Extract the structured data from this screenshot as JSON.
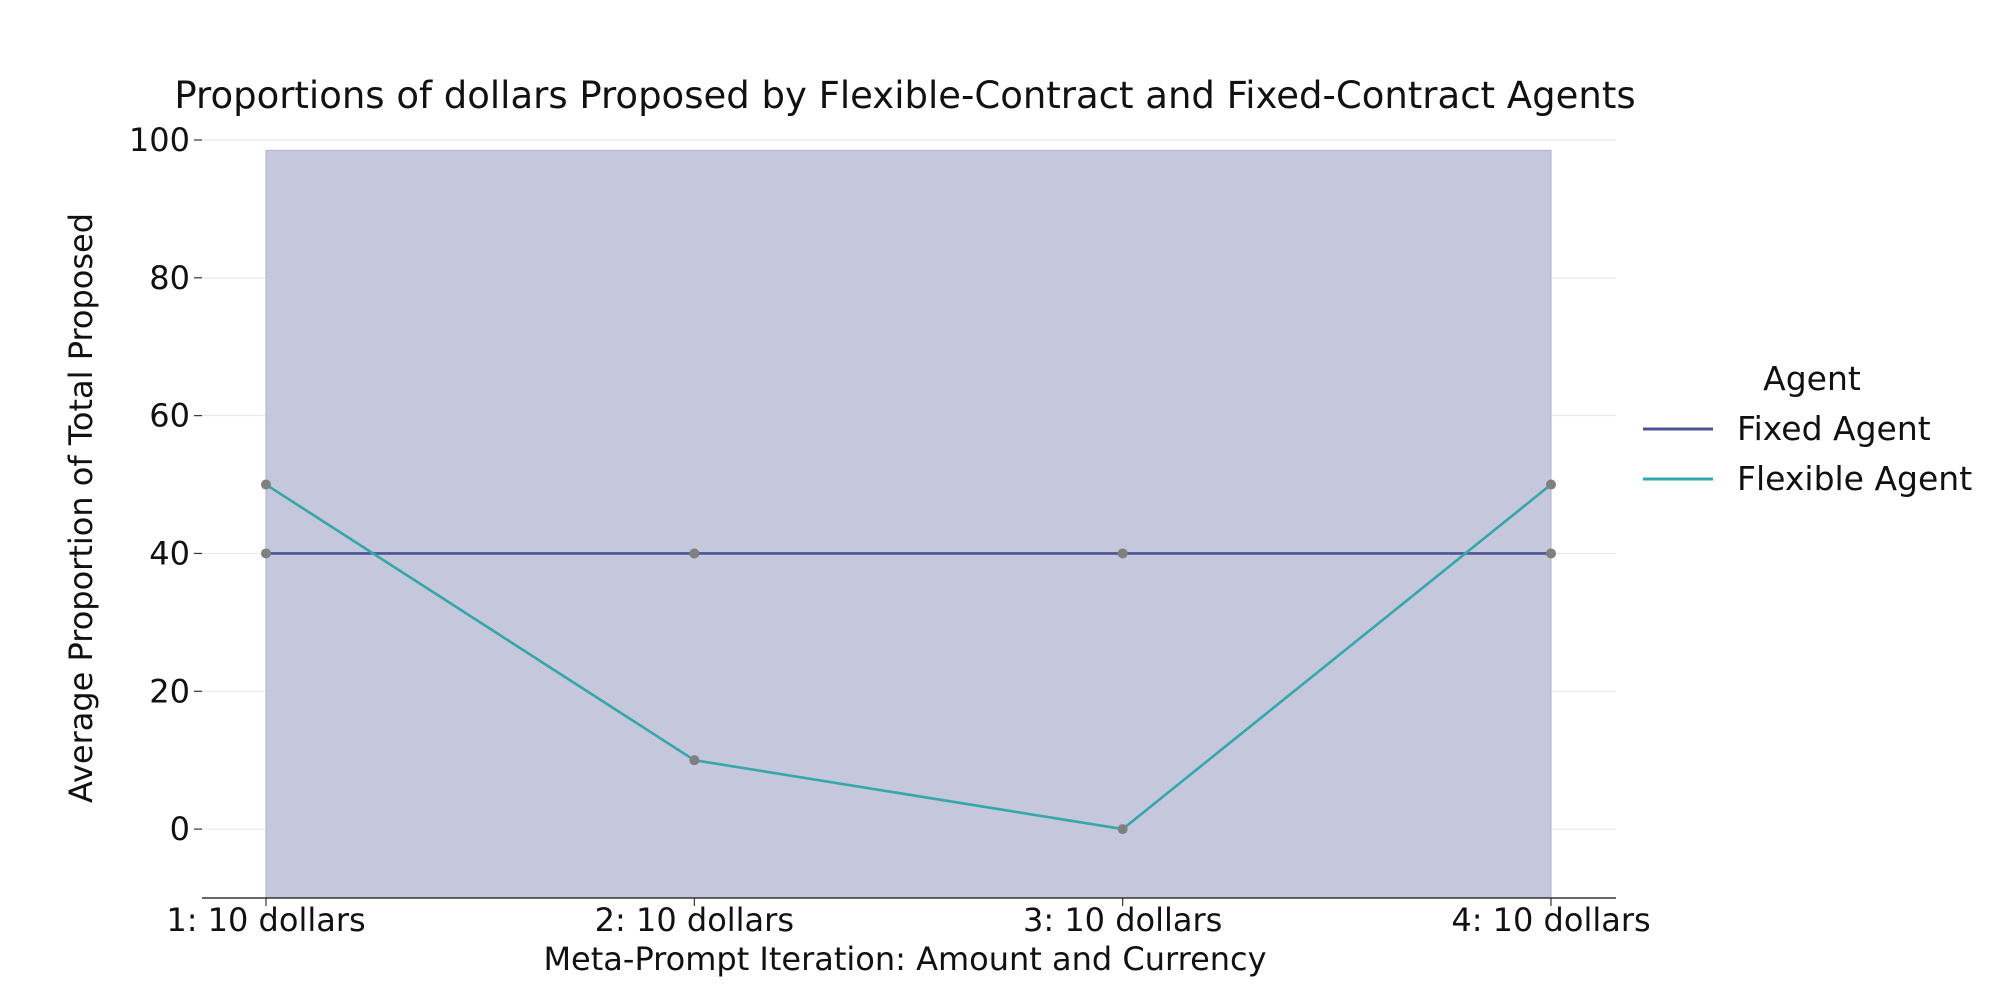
{
  "chart_data": {
    "type": "line",
    "title": "Proportions of dollars Proposed by Flexible-Contract and Fixed-Contract Agents",
    "xlabel": "Meta-Prompt Iteration: Amount and Currency",
    "ylabel": "Average Proportion of Total Proposed",
    "categories": [
      "1: 10 dollars",
      "2: 10 dollars",
      "3: 10 dollars",
      "4: 10 dollars"
    ],
    "ylim": [
      -10,
      100
    ],
    "yticks": [
      0,
      20,
      40,
      60,
      80,
      100
    ],
    "grid": true,
    "shaded_band": {
      "x_from": "1: 10 dollars",
      "x_to": "4: 10 dollars",
      "y_from": -10,
      "y_to": 98.5,
      "color": "#c5c7dc"
    },
    "legend": {
      "title": "Agent",
      "placement": "right"
    },
    "series": [
      {
        "name": "Fixed Agent",
        "values": [
          40,
          40,
          40,
          40
        ],
        "color": "#4b5596"
      },
      {
        "name": "Flexible Agent",
        "values": [
          50,
          10,
          0,
          50
        ],
        "color": "#35a7a9"
      }
    ],
    "marker_color": "#7f7f7f"
  }
}
